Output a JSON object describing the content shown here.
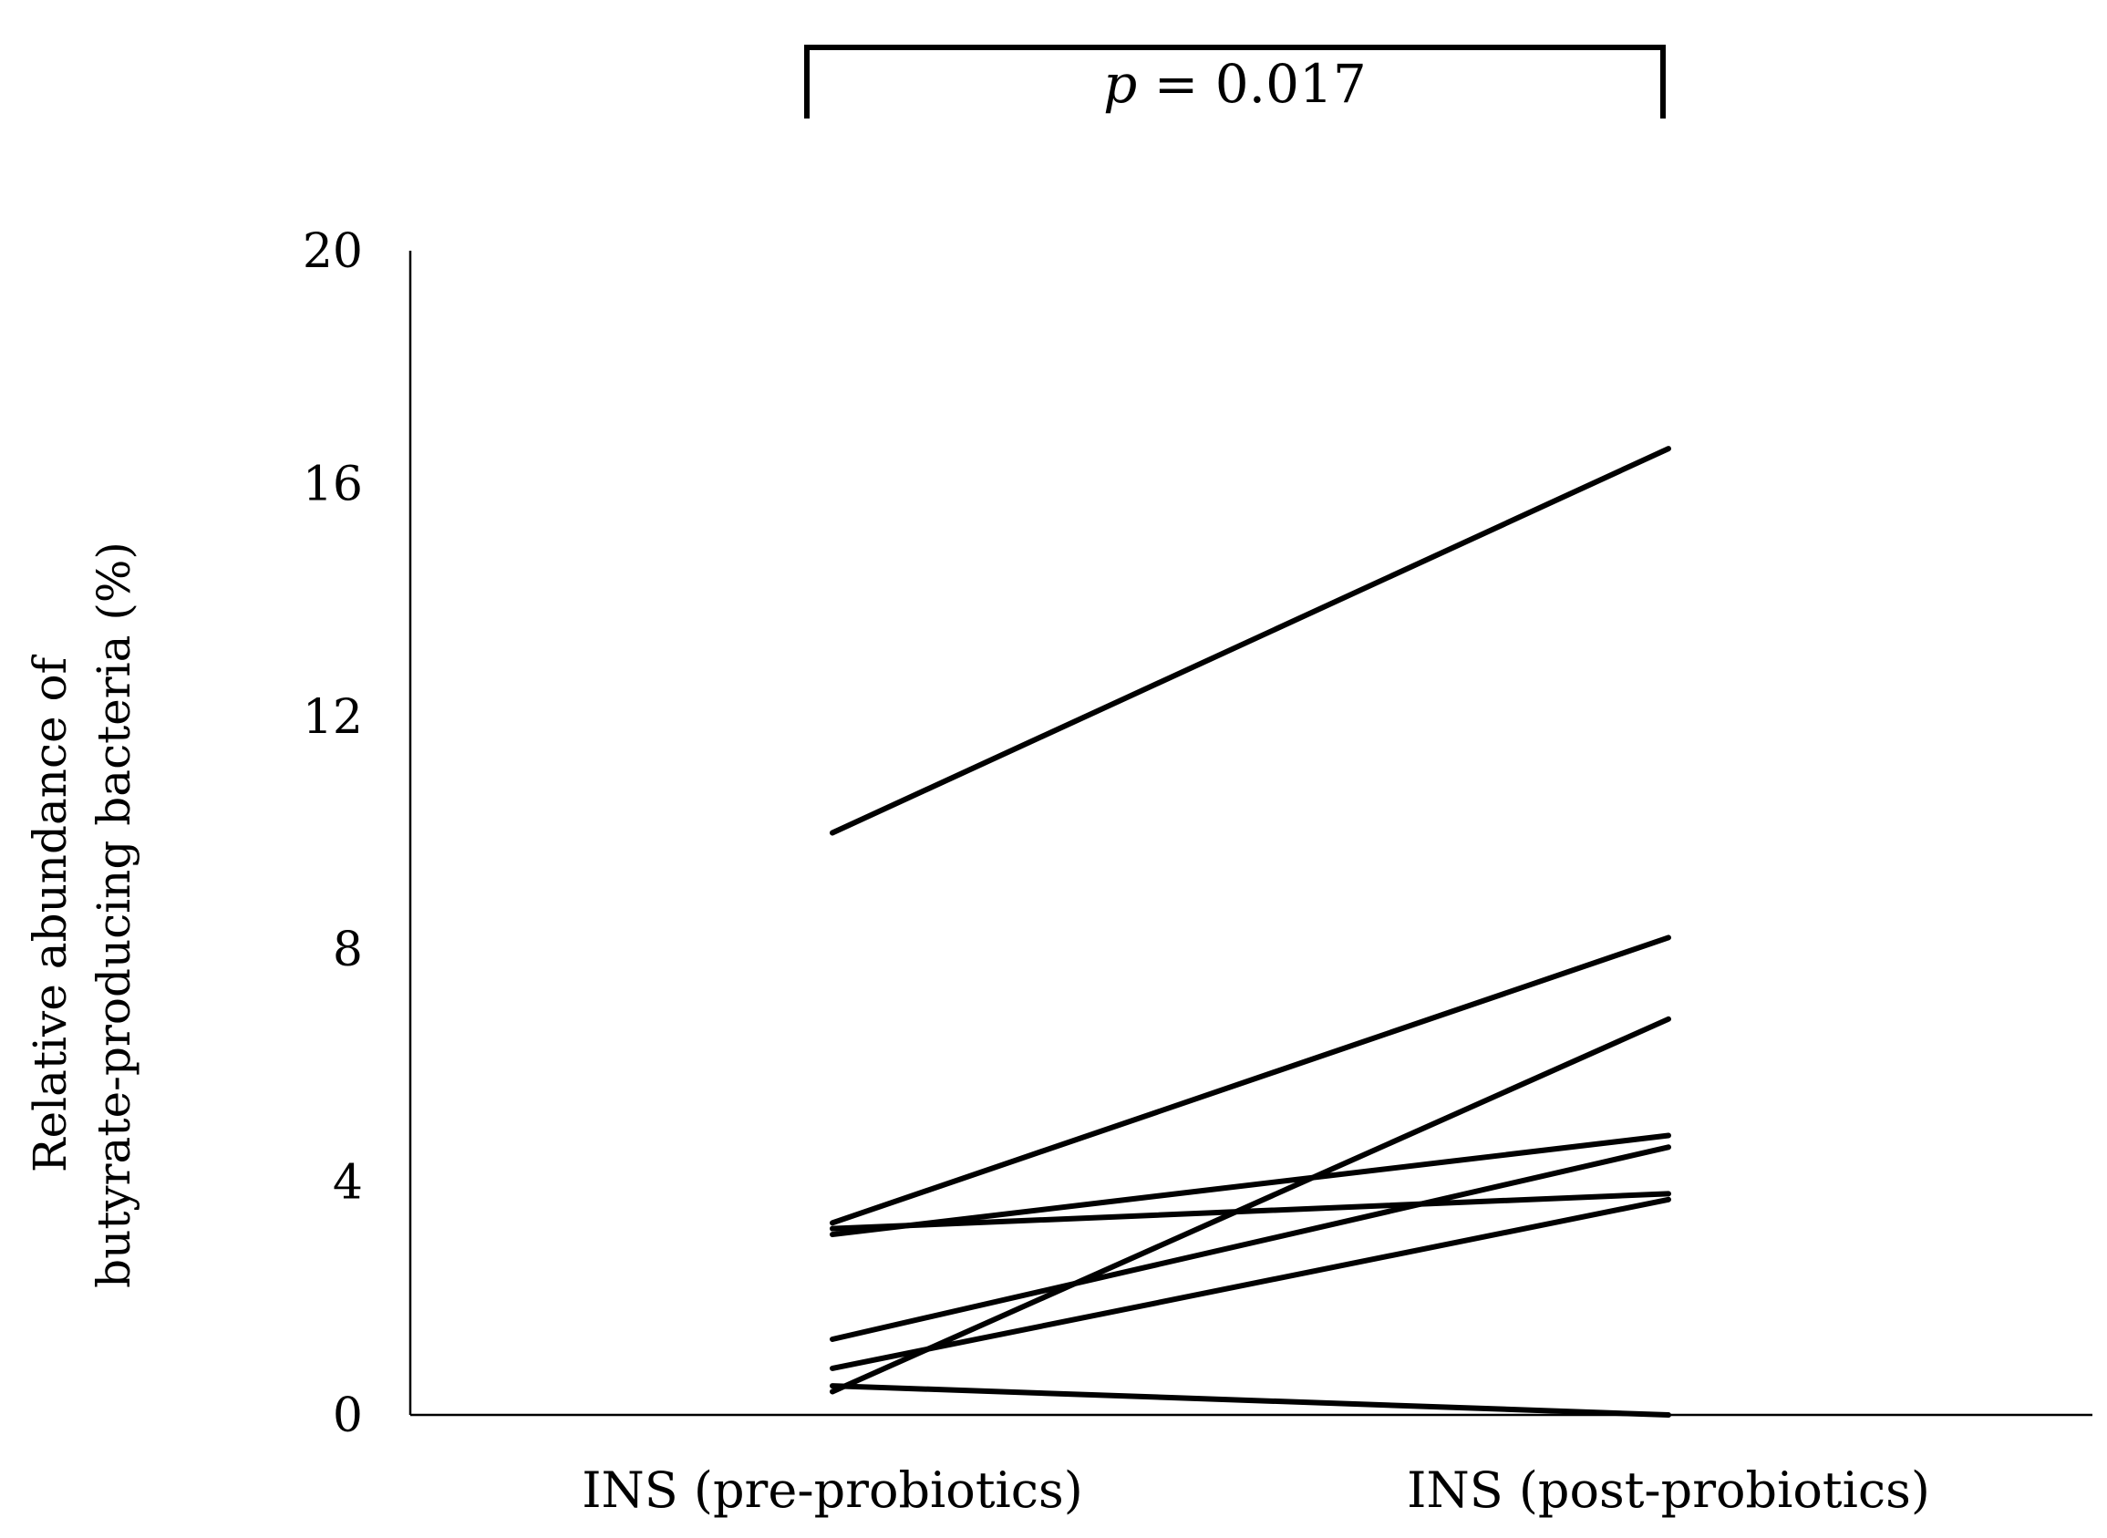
{
  "chart_data": {
    "type": "line",
    "categories": [
      "INS (pre-probiotics)",
      "INS (post-probiotics)"
    ],
    "ylabel_lines": [
      "Relative abundance of",
      "butyrate-producing bacteria (%)"
    ],
    "xlabel": "",
    "ylim": [
      0,
      20
    ],
    "yticks": [
      0,
      4,
      8,
      12,
      16,
      20
    ],
    "grid": false,
    "legend": "none",
    "line_color": "#000000",
    "series": [
      {
        "values": [
          10.0,
          16.6
        ]
      },
      {
        "values": [
          3.3,
          8.2
        ]
      },
      {
        "values": [
          0.4,
          6.8
        ]
      },
      {
        "values": [
          3.1,
          4.8
        ]
      },
      {
        "values": [
          3.2,
          3.8
        ]
      },
      {
        "values": [
          1.3,
          4.6
        ]
      },
      {
        "values": [
          0.8,
          3.7
        ]
      },
      {
        "values": [
          0.5,
          0.0
        ]
      }
    ],
    "annotation": {
      "p_symbol": "p",
      "p_rest": " = 0.017",
      "between": [
        "INS (pre-probiotics)",
        "INS (post-probiotics)"
      ]
    }
  }
}
